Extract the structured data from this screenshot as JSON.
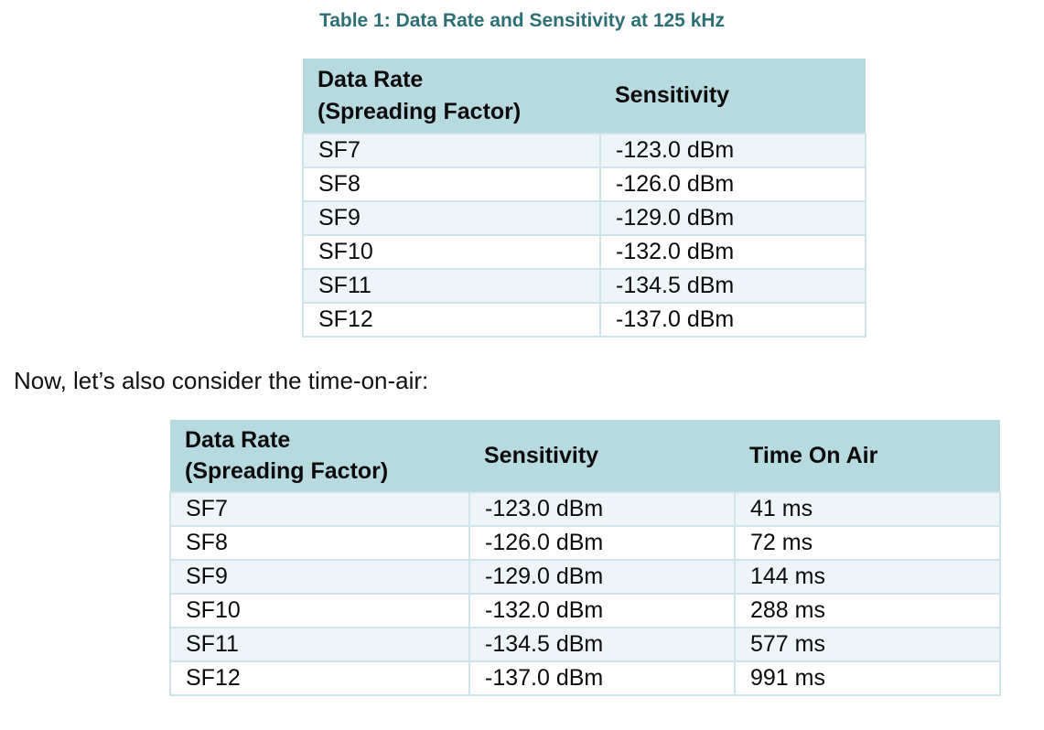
{
  "caption": "Table 1: Data Rate and Sensitivity at 125 kHz",
  "paragraph": "Now, let’s also consider the time-on-air:",
  "colors": {
    "caption_teal": "#2e6f76",
    "header_fill": "#b7dae1",
    "stripe_fill": "#edf5f8",
    "border": "#cfe4ea",
    "text": "#0b0b0b"
  },
  "table1": {
    "headers": [
      "Data Rate\n(Spreading Factor)",
      "Sensitivity"
    ],
    "rows": [
      [
        "SF7",
        "-123.0 dBm"
      ],
      [
        "SF8",
        "-126.0 dBm"
      ],
      [
        "SF9",
        "-129.0 dBm"
      ],
      [
        "SF10",
        "-132.0 dBm"
      ],
      [
        "SF11",
        "-134.5 dBm"
      ],
      [
        "SF12",
        "-137.0 dBm"
      ]
    ]
  },
  "table2": {
    "headers": [
      "Data Rate\n(Spreading Factor)",
      "Sensitivity",
      "Time On Air"
    ],
    "rows": [
      [
        "SF7",
        "-123.0 dBm",
        "41 ms"
      ],
      [
        "SF8",
        "-126.0 dBm",
        "72 ms"
      ],
      [
        "SF9",
        "-129.0 dBm",
        "144 ms"
      ],
      [
        "SF10",
        "-132.0 dBm",
        "288 ms"
      ],
      [
        "SF11",
        "-134.5 dBm",
        "577 ms"
      ],
      [
        "SF12",
        "-137.0 dBm",
        "991 ms"
      ]
    ]
  }
}
